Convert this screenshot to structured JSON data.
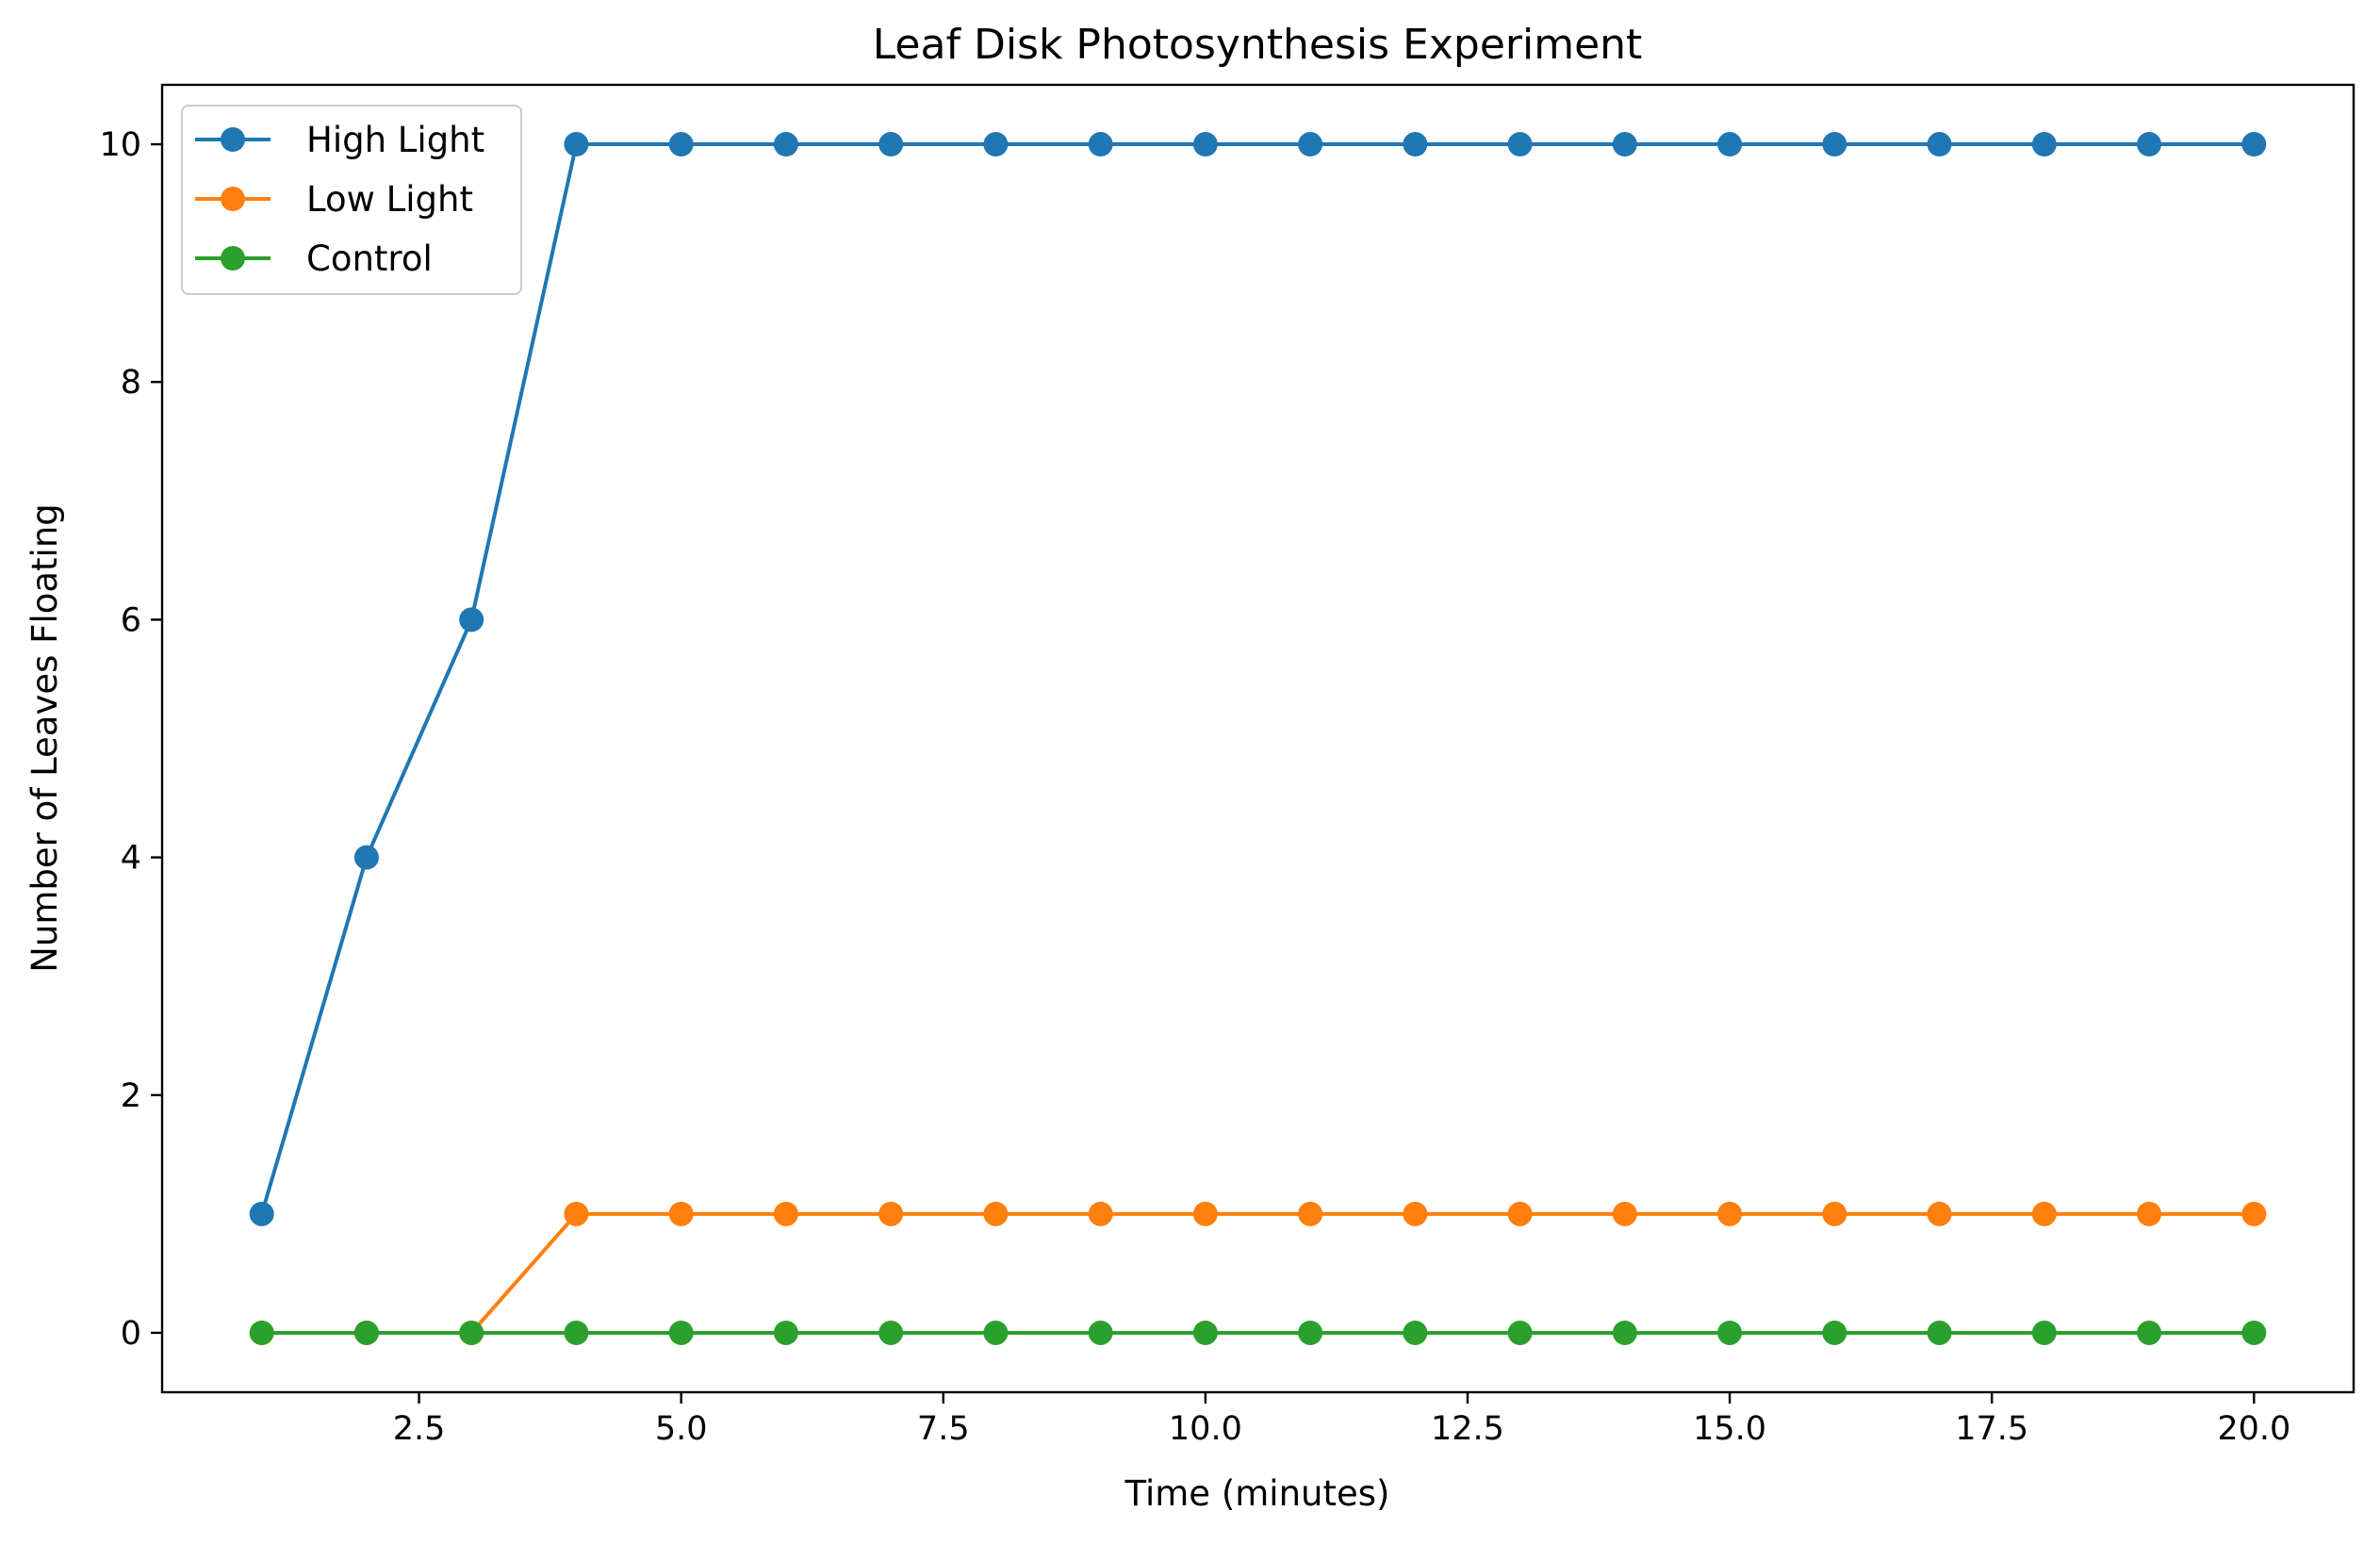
{
  "chart_data": {
    "type": "line",
    "title": "Leaf Disk Photosynthesis Experiment",
    "xlabel": "Time (minutes)",
    "ylabel": "Number of Leaves Floating",
    "x": [
      1,
      2,
      3,
      4,
      5,
      6,
      7,
      8,
      9,
      10,
      11,
      12,
      13,
      14,
      15,
      16,
      17,
      18,
      19,
      20
    ],
    "xlim": [
      0.05,
      20.95
    ],
    "ylim": [
      -0.5,
      10.5
    ],
    "xticks": [
      2.5,
      5.0,
      7.5,
      10.0,
      12.5,
      15.0,
      17.5,
      20.0
    ],
    "xtick_labels": [
      "2.5",
      "5.0",
      "7.5",
      "10.0",
      "12.5",
      "15.0",
      "17.5",
      "20.0"
    ],
    "yticks": [
      0,
      2,
      4,
      6,
      8,
      10
    ],
    "ytick_labels": [
      "0",
      "2",
      "4",
      "6",
      "8",
      "10"
    ],
    "grid": false,
    "legend_position": "top-left",
    "series": [
      {
        "name": "High Light",
        "color": "#1f77b4",
        "marker": "circle",
        "values": [
          1,
          4,
          6,
          10,
          10,
          10,
          10,
          10,
          10,
          10,
          10,
          10,
          10,
          10,
          10,
          10,
          10,
          10,
          10,
          10
        ]
      },
      {
        "name": "Low Light",
        "color": "#ff7f0e",
        "marker": "circle",
        "values": [
          0,
          0,
          0,
          1,
          1,
          1,
          1,
          1,
          1,
          1,
          1,
          1,
          1,
          1,
          1,
          1,
          1,
          1,
          1,
          1
        ]
      },
      {
        "name": "Control",
        "color": "#2ca02c",
        "marker": "circle",
        "values": [
          0,
          0,
          0,
          0,
          0,
          0,
          0,
          0,
          0,
          0,
          0,
          0,
          0,
          0,
          0,
          0,
          0,
          0,
          0,
          0
        ]
      }
    ]
  }
}
